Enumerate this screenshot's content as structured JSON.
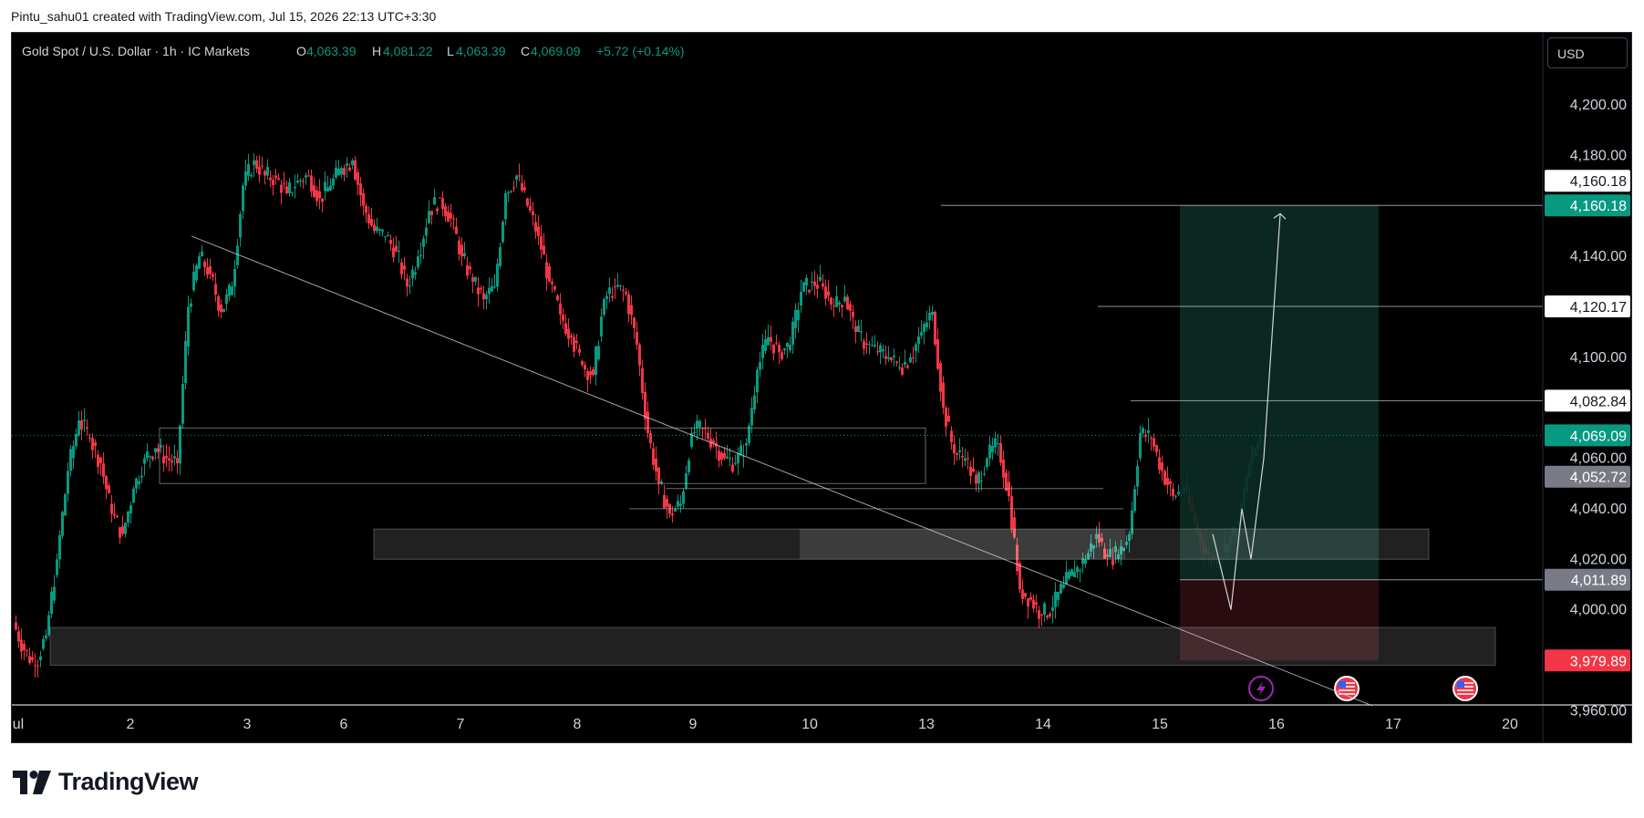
{
  "header": {
    "author_line": "Pintu_sahu01 created with TradingView.com, Jul 15, 2026 22:13 UTC+3:30"
  },
  "legend": {
    "symbol": "Gold Spot / U.S. Dollar · 1h · IC Markets",
    "o_label": "O",
    "o_value": "4,063.39",
    "h_label": "H",
    "h_value": "4,081.22",
    "l_label": "L",
    "l_value": "4,063.39",
    "c_label": "C",
    "c_value": "4,069.09",
    "change": "+5.72 (+0.14%)"
  },
  "currency_button": "USD",
  "branding": {
    "wordmark": "TradingView",
    "logo_icon": "tradingview-logo-icon"
  },
  "colors": {
    "up": "#089981",
    "down": "#f23645",
    "grid": "#131722",
    "target_zone": "#0b2b24",
    "stop_zone": "#2f0c12",
    "current_price_label": "#089981",
    "stop_label": "#f23645",
    "event_icon_purple": "#9c27b0"
  },
  "chart_data": {
    "type": "candlestick",
    "title": "Gold Spot / U.S. Dollar",
    "interval": "1h",
    "source": "IC Markets",
    "y_ticks": [
      "4,200.00",
      "4,180.00",
      "4,140.00",
      "4,100.00",
      "4,060.00",
      "4,040.00",
      "4,020.00",
      "4,000.00",
      "3,960.00"
    ],
    "y_range": [
      3945,
      4222
    ],
    "x_ticks": [
      "ul",
      "2",
      "3",
      "6",
      "7",
      "8",
      "9",
      "10",
      "13",
      "14",
      "15",
      "16",
      "17",
      "20"
    ],
    "price_labels": [
      {
        "text": "4,160.18",
        "value": 4160.18,
        "style": "outline"
      },
      {
        "text": "4,160.18",
        "value": 4160.18,
        "style": "target"
      },
      {
        "text": "4,120.17",
        "value": 4120.17,
        "style": "outline"
      },
      {
        "text": "4,082.84",
        "value": 4082.84,
        "style": "outline"
      },
      {
        "text": "4,069.09",
        "value": 4069.09,
        "style": "current"
      },
      {
        "text": "4,052.72",
        "value": 4052.72,
        "style": "gray"
      },
      {
        "text": "4,011.89",
        "value": 4011.89,
        "style": "gray"
      },
      {
        "text": "3,979.89",
        "value": 3979.89,
        "style": "stop"
      }
    ],
    "horizontal_levels": [
      4160.18,
      4120.17,
      4082.84,
      4011.89
    ],
    "current_price": 4069.09,
    "long_position": {
      "entry": 4011.89,
      "target": 4160.18,
      "stop": 3979.89
    },
    "zones": [
      {
        "name": "supply-demand-zone-upper",
        "low": 4020,
        "high": 4032
      },
      {
        "name": "supply-demand-zone-lower",
        "low": 3978,
        "high": 3993
      }
    ],
    "trendline": {
      "from_value": 4148,
      "to_value": 3962
    },
    "projected_path": [
      4030,
      4000,
      4040,
      4020,
      4160.18
    ],
    "event_icons": [
      "lightning-event-icon",
      "us-flag-event-icon",
      "us-flag-event-icon"
    ],
    "close_path": [
      3995,
      3984,
      3978,
      3990,
      4020,
      4055,
      4075,
      4068,
      4058,
      4038,
      4030,
      4048,
      4060,
      4064,
      4060,
      4058,
      4120,
      4140,
      4133,
      4118,
      4128,
      4168,
      4178,
      4172,
      4171,
      4165,
      4170,
      4172,
      4163,
      4168,
      4175,
      4178,
      4160,
      4150,
      4148,
      4142,
      4128,
      4140,
      4158,
      4163,
      4155,
      4140,
      4130,
      4123,
      4128,
      4165,
      4172,
      4160,
      4148,
      4130,
      4117,
      4108,
      4097,
      4093,
      4123,
      4128,
      4125,
      4105,
      4070,
      4050,
      4038,
      4042,
      4070,
      4072,
      4066,
      4060,
      4058,
      4066,
      4095,
      4108,
      4102,
      4105,
      4126,
      4130,
      4128,
      4120,
      4124,
      4110,
      4105,
      4102,
      4100,
      4096,
      4100,
      4110,
      4118,
      4080,
      4062,
      4060,
      4050,
      4060,
      4066,
      4045,
      4008,
      4004,
      3998,
      4001,
      4010,
      4015,
      4020,
      4030,
      4021,
      4022,
      4030,
      4070,
      4068,
      4055,
      4045,
      4048,
      4035,
      4022,
      4019,
      4026,
      4035,
      4058,
      4069
    ]
  }
}
